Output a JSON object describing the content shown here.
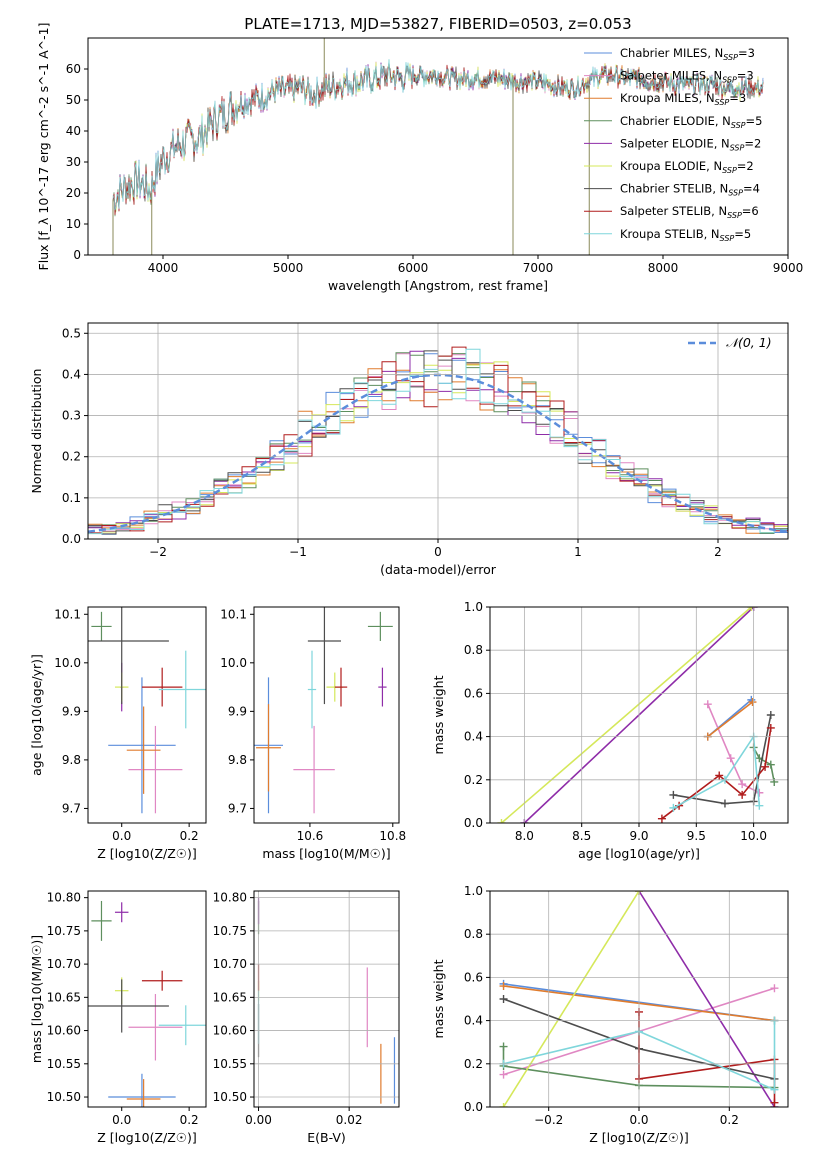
{
  "title": "PLATE=1713, MJD=53827, FIBERID=0503, z=0.053",
  "colors": {
    "chabrier_miles": "#5B8DDB",
    "salpeter_miles": "#E087C3",
    "kroupa_miles": "#E07C2E",
    "chabrier_elodie": "#5E8F5E",
    "salpeter_elodie": "#8E2CA8",
    "kroupa_elodie": "#D5E85A",
    "chabrier_stelib": "#4D4D4D",
    "salpeter_stelib": "#B01C1C",
    "kroupa_stelib": "#7FD6DB",
    "normal": "#5B8DDB",
    "grid": "#B0B0B0"
  },
  "chart_data": [
    {
      "id": "spectrum",
      "type": "line",
      "xlabel": "wavelength [Angstrom, rest frame]",
      "ylabel": "Flux [f_λ 10^-17 erg cm^-2 s^-1 A^-1]",
      "xlim": [
        3400,
        9000
      ],
      "ylim": [
        0,
        70
      ],
      "xticks": [
        4000,
        5000,
        6000,
        7000,
        8000,
        9000
      ],
      "yticks": [
        0,
        10,
        20,
        30,
        40,
        50,
        60
      ],
      "grid": false,
      "legend_position": "top-right",
      "legend": [
        {
          "key": "chabrier_miles",
          "text": "Chabrier MILES, N",
          "n": "=3"
        },
        {
          "key": "salpeter_miles",
          "text": "Salpeter MILES, N",
          "n": "=3"
        },
        {
          "key": "kroupa_miles",
          "text": "Kroupa MILES, N",
          "n": "=3"
        },
        {
          "key": "chabrier_elodie",
          "text": "Chabrier ELODIE, N",
          "n": "=5"
        },
        {
          "key": "salpeter_elodie",
          "text": "Salpeter ELODIE, N",
          "n": "=2"
        },
        {
          "key": "kroupa_elodie",
          "text": "Kroupa ELODIE, N",
          "n": "=2"
        },
        {
          "key": "chabrier_stelib",
          "text": "Chabrier STELIB, N",
          "n": "=4"
        },
        {
          "key": "salpeter_stelib",
          "text": "Salpeter STELIB, N",
          "n": "=6"
        },
        {
          "key": "kroupa_stelib",
          "text": "Kroupa STELIB, N",
          "n": "=5"
        }
      ],
      "legend_subscript": "SSP",
      "continuum": [
        [
          3600,
          18
        ],
        [
          3700,
          22
        ],
        [
          3800,
          24
        ],
        [
          3900,
          21
        ],
        [
          3950,
          27
        ],
        [
          4000,
          31
        ],
        [
          4100,
          35
        ],
        [
          4200,
          37
        ],
        [
          4300,
          38
        ],
        [
          4400,
          43
        ],
        [
          4500,
          46
        ],
        [
          4600,
          49
        ],
        [
          4700,
          50
        ],
        [
          4800,
          51
        ],
        [
          4900,
          53
        ],
        [
          5000,
          53
        ],
        [
          5100,
          54
        ],
        [
          5200,
          52
        ],
        [
          5300,
          54
        ],
        [
          5400,
          55
        ],
        [
          5500,
          56
        ],
        [
          5600,
          56
        ],
        [
          5700,
          57
        ],
        [
          5800,
          58
        ],
        [
          5900,
          57
        ],
        [
          6000,
          58
        ],
        [
          6100,
          58
        ],
        [
          6200,
          58
        ],
        [
          6300,
          57
        ],
        [
          6400,
          57
        ],
        [
          6500,
          57
        ],
        [
          6600,
          57
        ],
        [
          6700,
          57
        ],
        [
          6800,
          56
        ],
        [
          6900,
          56
        ],
        [
          7000,
          56
        ],
        [
          7100,
          55
        ],
        [
          7200,
          54
        ],
        [
          7300,
          54
        ],
        [
          7400,
          56
        ],
        [
          7500,
          58
        ],
        [
          7600,
          58
        ],
        [
          7700,
          57
        ],
        [
          7800,
          57
        ],
        [
          7900,
          56
        ],
        [
          8000,
          56
        ],
        [
          8100,
          55
        ],
        [
          8200,
          55
        ],
        [
          8300,
          55
        ],
        [
          8400,
          55
        ],
        [
          8500,
          54
        ],
        [
          8600,
          54
        ],
        [
          8700,
          54
        ],
        [
          8800,
          54
        ]
      ],
      "spikes": [
        {
          "x": 5290,
          "y1": 53,
          "y2": 70
        },
        {
          "x": 6800,
          "y1": 58,
          "y2": 0
        },
        {
          "x": 7410,
          "y1": 54,
          "y2": 0
        },
        {
          "x": 3910,
          "y1": 20,
          "y2": 0
        },
        {
          "x": 3600,
          "y1": 18,
          "y2": 0
        }
      ]
    },
    {
      "id": "residuals",
      "type": "histogram",
      "xlabel": "(data-model)/error",
      "ylabel": "Normed distribution",
      "xlim": [
        -2.5,
        2.5
      ],
      "ylim": [
        0,
        0.525
      ],
      "xticks": [
        -2,
        -1,
        0,
        1,
        2
      ],
      "yticks": [
        0.0,
        0.1,
        0.2,
        0.3,
        0.4,
        0.5
      ],
      "grid": true,
      "legend_position": "top-right",
      "normal_label": "𝒩(0, 1)",
      "bin_width": 0.1
    },
    {
      "id": "age_vs_Z",
      "type": "scatter",
      "xlabel": "Z [log10(Z/Z☉)]",
      "ylabel": "age [log10(age/yr)]",
      "xlim": [
        -0.1,
        0.25
      ],
      "ylim": [
        9.67,
        10.115
      ],
      "xticks": [
        0.0,
        0.2
      ],
      "yticks": [
        9.7,
        9.8,
        9.9,
        10.0,
        10.1
      ],
      "grid": false,
      "points": [
        {
          "key": "chabrier_miles",
          "x": 0.06,
          "xe": 0.1,
          "y": 9.83,
          "ye": 0.14
        },
        {
          "key": "salpeter_miles",
          "x": 0.1,
          "xe": 0.08,
          "y": 9.78,
          "ye": 0.09
        },
        {
          "key": "kroupa_miles",
          "x": 0.065,
          "xe": 0.05,
          "y": 9.82,
          "ye": 0.09
        },
        {
          "key": "chabrier_elodie",
          "x": -0.06,
          "xe": 0.03,
          "y": 10.075,
          "ye": 0.03
        },
        {
          "key": "salpeter_elodie",
          "x": 0.0,
          "xe": 0.005,
          "y": 9.95,
          "ye": 0.05
        },
        {
          "key": "kroupa_elodie",
          "x": 0.0,
          "xe": 0.02,
          "y": 9.95,
          "ye": 0.03
        },
        {
          "key": "chabrier_stelib",
          "x": 0.0,
          "xe": 0.14,
          "y": 10.045,
          "ye": 0.13
        },
        {
          "key": "salpeter_stelib",
          "x": 0.12,
          "xe": 0.06,
          "y": 9.95,
          "ye": 0.04
        },
        {
          "key": "kroupa_stelib",
          "x": 0.19,
          "xe": 0.08,
          "y": 9.945,
          "ye": 0.08
        }
      ]
    },
    {
      "id": "age_vs_mass",
      "type": "scatter",
      "xlabel": "mass [log10(M/M☉)]",
      "ylabel": "",
      "xlim": [
        10.465,
        10.815
      ],
      "ylim": [
        9.67,
        10.115
      ],
      "xticks": [
        10.6,
        10.8
      ],
      "yticks": [
        9.7,
        9.8,
        9.9,
        10.0,
        10.1
      ],
      "grid": false,
      "points": [
        {
          "key": "chabrier_miles",
          "x": 10.5,
          "xe": 0.035,
          "y": 9.83,
          "ye": 0.14
        },
        {
          "key": "salpeter_miles",
          "x": 10.61,
          "xe": 0.05,
          "y": 9.78,
          "ye": 0.09
        },
        {
          "key": "kroupa_miles",
          "x": 10.5,
          "xe": 0.03,
          "y": 9.825,
          "ye": 0.09
        },
        {
          "key": "chabrier_elodie",
          "x": 10.77,
          "xe": 0.03,
          "y": 10.075,
          "ye": 0.03
        },
        {
          "key": "salpeter_elodie",
          "x": 10.775,
          "xe": 0.01,
          "y": 9.95,
          "ye": 0.04
        },
        {
          "key": "kroupa_elodie",
          "x": 10.66,
          "xe": 0.02,
          "y": 9.95,
          "ye": 0.03
        },
        {
          "key": "chabrier_stelib",
          "x": 10.635,
          "xe": 0.04,
          "y": 10.045,
          "ye": 0.13
        },
        {
          "key": "salpeter_stelib",
          "x": 10.675,
          "xe": 0.015,
          "y": 9.95,
          "ye": 0.04
        },
        {
          "key": "kroupa_stelib",
          "x": 10.605,
          "xe": 0.01,
          "y": 9.945,
          "ye": 0.08
        }
      ]
    },
    {
      "id": "mass_weight_vs_age",
      "type": "line",
      "xlabel": "age [log10(age/yr)]",
      "ylabel": "mass weight",
      "xlim": [
        7.7,
        10.3
      ],
      "ylim": [
        0,
        1.0
      ],
      "xticks": [
        8.0,
        8.5,
        9.0,
        9.5,
        10.0
      ],
      "yticks": [
        0.0,
        0.2,
        0.4,
        0.6,
        0.8,
        1.0
      ],
      "grid": true,
      "series": [
        {
          "key": "chabrier_miles",
          "x": [
            9.6,
            9.98
          ],
          "y": [
            0.4,
            0.57
          ]
        },
        {
          "key": "salpeter_miles",
          "x": [
            9.6,
            9.8,
            9.9,
            10.05
          ],
          "y": [
            0.55,
            0.3,
            0.18,
            0.14
          ]
        },
        {
          "key": "kroupa_miles",
          "x": [
            9.6,
            9.99
          ],
          "y": [
            0.4,
            0.56
          ]
        },
        {
          "key": "chabrier_elodie",
          "x": [
            10.0,
            10.05,
            10.15,
            10.18
          ],
          "y": [
            0.35,
            0.3,
            0.27,
            0.19
          ]
        },
        {
          "key": "salpeter_elodie",
          "x": [
            8.0,
            10.0
          ],
          "y": [
            0.0,
            1.0
          ]
        },
        {
          "key": "kroupa_elodie",
          "x": [
            7.8,
            9.98
          ],
          "y": [
            0.0,
            1.0
          ]
        },
        {
          "key": "chabrier_stelib",
          "x": [
            9.3,
            9.75,
            10.0,
            10.15
          ],
          "y": [
            0.13,
            0.09,
            0.1,
            0.5
          ]
        },
        {
          "key": "salpeter_stelib",
          "x": [
            9.2,
            9.35,
            9.7,
            9.9,
            10.1,
            10.15
          ],
          "y": [
            0.02,
            0.08,
            0.22,
            0.13,
            0.26,
            0.44
          ]
        },
        {
          "key": "kroupa_stelib",
          "x": [
            9.3,
            9.75,
            10.0,
            10.05
          ],
          "y": [
            0.07,
            0.2,
            0.4,
            0.08
          ]
        }
      ]
    },
    {
      "id": "mass_vs_Z",
      "type": "scatter",
      "xlabel": "Z [log10(Z/Z☉)]",
      "ylabel": "mass [log10(M/M☉)]",
      "xlim": [
        -0.1,
        0.25
      ],
      "ylim": [
        10.485,
        10.81
      ],
      "xticks": [
        0.0,
        0.2
      ],
      "yticks": [
        10.5,
        10.55,
        10.6,
        10.65,
        10.7,
        10.75,
        10.8
      ],
      "grid": false,
      "points": [
        {
          "key": "chabrier_miles",
          "x": 0.06,
          "xe": 0.1,
          "y": 10.5,
          "ye": 0.035
        },
        {
          "key": "salpeter_miles",
          "x": 0.1,
          "xe": 0.08,
          "y": 10.605,
          "ye": 0.05
        },
        {
          "key": "kroupa_miles",
          "x": 0.065,
          "xe": 0.05,
          "y": 10.497,
          "ye": 0.03
        },
        {
          "key": "chabrier_elodie",
          "x": -0.06,
          "xe": 0.03,
          "y": 10.765,
          "ye": 0.03
        },
        {
          "key": "salpeter_elodie",
          "x": 0.0,
          "xe": 0.02,
          "y": 10.778,
          "ye": 0.015
        },
        {
          "key": "kroupa_elodie",
          "x": 0.0,
          "xe": 0.02,
          "y": 10.66,
          "ye": 0.02
        },
        {
          "key": "chabrier_stelib",
          "x": 0.0,
          "xe": 0.14,
          "y": 10.637,
          "ye": 0.04
        },
        {
          "key": "salpeter_stelib",
          "x": 0.12,
          "xe": 0.06,
          "y": 10.675,
          "ye": 0.015
        },
        {
          "key": "kroupa_stelib",
          "x": 0.19,
          "xe": 0.08,
          "y": 10.608,
          "ye": 0.03
        }
      ]
    },
    {
      "id": "mass_vs_ebv",
      "type": "scatter",
      "xlabel": "E(B-V)",
      "ylabel": "",
      "xlim": [
        -0.001,
        0.031
      ],
      "ylim": [
        10.485,
        10.81
      ],
      "xticks": [
        0.0,
        0.02
      ],
      "yticks": [
        10.5,
        10.55,
        10.6,
        10.65,
        10.7,
        10.75,
        10.8
      ],
      "grid": true,
      "points": [
        {
          "key": "chabrier_miles",
          "x": 0.03,
          "xe": 0,
          "y": 10.54,
          "ye": 0.05
        },
        {
          "key": "salpeter_miles",
          "x": 0.024,
          "xe": 0,
          "y": 10.635,
          "ye": 0.06
        },
        {
          "key": "kroupa_miles",
          "x": 0.027,
          "xe": 0,
          "y": 10.535,
          "ye": 0.045
        },
        {
          "key": "chabrier_elodie",
          "x": 0.0,
          "xe": 0,
          "y": 10.77,
          "ye": 0.025
        },
        {
          "key": "salpeter_elodie",
          "x": 0.0,
          "xe": 0,
          "y": 10.78,
          "ye": 0.02
        },
        {
          "key": "kroupa_elodie",
          "x": 0.0,
          "xe": 0,
          "y": 10.66,
          "ye": 0.015
        },
        {
          "key": "chabrier_stelib",
          "x": 0.0,
          "xe": 0,
          "y": 10.6,
          "ye": 0.04
        },
        {
          "key": "salpeter_stelib",
          "x": 0.0,
          "xe": 0,
          "y": 10.68,
          "ye": 0.02
        },
        {
          "key": "kroupa_stelib",
          "x": 0.0,
          "xe": 0,
          "y": 10.62,
          "ye": 0.04
        }
      ]
    },
    {
      "id": "mass_weight_vs_Z",
      "type": "line",
      "xlabel": "Z [log10(Z/Z☉)]",
      "ylabel": "mass weight",
      "xlim": [
        -0.33,
        0.33
      ],
      "ylim": [
        0,
        1.0
      ],
      "xticks": [
        -0.2,
        0.0,
        0.2
      ],
      "yticks": [
        0.0,
        0.2,
        0.4,
        0.6,
        0.8,
        1.0
      ],
      "grid": true,
      "series": [
        {
          "key": "chabrier_miles",
          "x": [
            -0.3,
            0.3
          ],
          "y": [
            0.57,
            0.4
          ]
        },
        {
          "key": "salpeter_miles",
          "x": [
            -0.3,
            0.3
          ],
          "y": [
            0.15,
            0.55
          ]
        },
        {
          "key": "kroupa_miles",
          "x": [
            -0.3,
            0.3
          ],
          "y": [
            0.56,
            0.4
          ]
        },
        {
          "key": "chabrier_elodie",
          "x": [
            -0.3,
            -0.3,
            0.0,
            0.3
          ],
          "y": [
            0.28,
            0.19,
            0.1,
            0.09
          ]
        },
        {
          "key": "salpeter_elodie",
          "x": [
            0.0,
            0.3
          ],
          "y": [
            1.0,
            0.0
          ]
        },
        {
          "key": "kroupa_elodie",
          "x": [
            -0.3,
            0.0
          ],
          "y": [
            0.0,
            1.0
          ]
        },
        {
          "key": "chabrier_stelib",
          "x": [
            -0.3,
            0.0,
            0.3
          ],
          "y": [
            0.5,
            0.27,
            0.13
          ]
        },
        {
          "key": "salpeter_stelib",
          "x": [
            0.0,
            0.0,
            0.3,
            0.3
          ],
          "y": [
            0.44,
            0.13,
            0.22,
            0.02
          ]
        },
        {
          "key": "kroupa_stelib",
          "x": [
            -0.3,
            0.0,
            0.3,
            0.3
          ],
          "y": [
            0.2,
            0.35,
            0.08,
            0.4
          ]
        }
      ]
    }
  ]
}
